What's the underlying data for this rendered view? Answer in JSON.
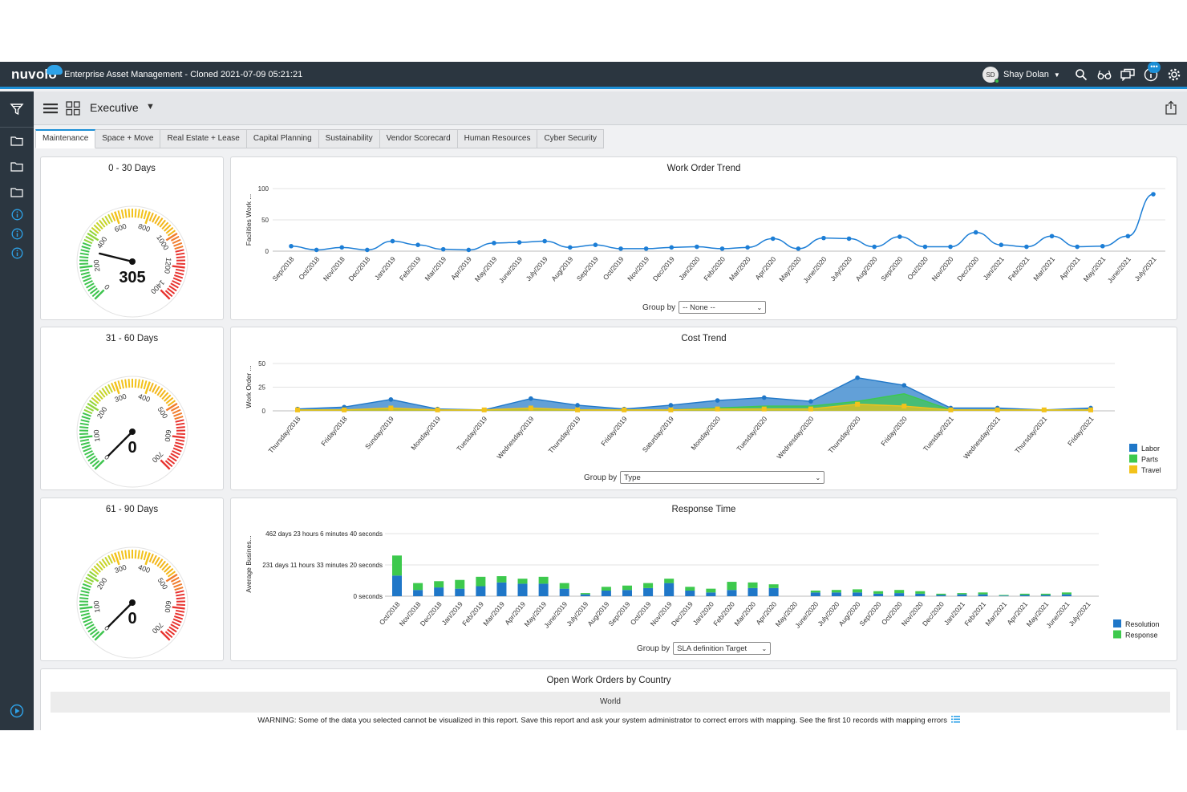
{
  "app": {
    "logo_text": "nuvolo",
    "title": "Enterprise Asset Management - Cloned 2021-07-09 05:21:21",
    "user_initials": "SD",
    "user_name": "Shay Dolan",
    "notification_badge": "•••",
    "accent_color": "#1c8fd6",
    "topbar_color": "#2b3640"
  },
  "header": {
    "dashboard_title": "Executive"
  },
  "tabs": [
    {
      "label": "Maintenance",
      "active": true
    },
    {
      "label": "Space + Move"
    },
    {
      "label": "Real Estate + Lease"
    },
    {
      "label": "Capital Planning"
    },
    {
      "label": "Sustainability"
    },
    {
      "label": "Vendor Scorecard"
    },
    {
      "label": "Human Resources"
    },
    {
      "label": "Cyber Security"
    }
  ],
  "gauges": [
    {
      "title": "0 - 30 Days",
      "value": "305",
      "ticks": [
        "0",
        "200",
        "400",
        "600",
        "800",
        "1000",
        "1200",
        "1400"
      ],
      "max": 1400,
      "needle_value": 305
    },
    {
      "title": "31 - 60 Days",
      "value": "0",
      "ticks": [
        "0",
        "100",
        "200",
        "300",
        "400",
        "500",
        "600",
        "700"
      ],
      "max": 700,
      "needle_value": 0
    },
    {
      "title": "61 - 90 Days",
      "value": "0",
      "ticks": [
        "0",
        "100",
        "200",
        "300",
        "400",
        "500",
        "600",
        "700"
      ],
      "max": 700,
      "needle_value": 0
    }
  ],
  "work_order_trend": {
    "title": "Work Order Trend",
    "group_by_label": "Group by",
    "group_by_value": "-- None --",
    "chart_data": {
      "type": "line",
      "ylabel": "Facilities Work ...",
      "yticks": [
        "0",
        "50",
        "100"
      ],
      "ylim": [
        0,
        100
      ],
      "color": "#1c7ed6",
      "categories": [
        "Sep/2018",
        "Oct/2018",
        "Nov/2018",
        "Dec/2018",
        "Jan/2019",
        "Feb/2019",
        "Mar/2019",
        "Apr/2019",
        "May/2019",
        "June/2019",
        "July/2019",
        "Aug/2019",
        "Sep/2019",
        "Oct/2019",
        "Nov/2019",
        "Dec/2019",
        "Jan/2020",
        "Feb/2020",
        "Mar/2020",
        "Apr/2020",
        "May/2020",
        "June/2020",
        "July/2020",
        "Aug/2020",
        "Sep/2020",
        "Oct/2020",
        "Nov/2020",
        "Dec/2020",
        "Jan/2021",
        "Feb/2021",
        "Mar/2021",
        "Apr/2021",
        "May/2021",
        "June/2021",
        "July/2021"
      ],
      "values": [
        8,
        2,
        6,
        2,
        16,
        10,
        3,
        2,
        13,
        14,
        16,
        6,
        10,
        4,
        4,
        6,
        7,
        4,
        6,
        20,
        4,
        21,
        20,
        7,
        23,
        7,
        7,
        30,
        10,
        7,
        24,
        7,
        8,
        24,
        91
      ]
    }
  },
  "cost_trend": {
    "title": "Cost Trend",
    "group_by_label": "Group by",
    "group_by_value": "Type",
    "chart_data": {
      "type": "area",
      "ylabel": "Work Order ...",
      "yticks": [
        "0",
        "25",
        "50"
      ],
      "ylim": [
        0,
        50
      ],
      "categories": [
        "Thursday/2018",
        "Friday/2018",
        "Sunday/2019",
        "Monday/2019",
        "Tuesday/2019",
        "Wednesday/2019",
        "Thursday/2019",
        "Friday/2019",
        "Saturday/2019",
        "Monday/2020",
        "Tuesday/2020",
        "Wednesday/2020",
        "Thursday/2020",
        "Friday/2020",
        "Tuesday/2021",
        "Wednesday/2021",
        "Thursday/2021",
        "Friday/2021"
      ],
      "series": [
        {
          "name": "Labor",
          "color": "#1f77c8",
          "values": [
            2,
            4,
            12,
            2,
            1,
            13,
            6,
            2,
            6,
            11,
            14,
            10,
            35,
            27,
            3,
            3,
            1,
            3
          ]
        },
        {
          "name": "Parts",
          "color": "#3dc94d",
          "values": [
            1,
            1,
            2,
            1,
            1,
            2,
            1,
            1,
            1,
            3,
            5,
            5,
            10,
            18,
            1,
            1,
            1,
            1
          ]
        },
        {
          "name": "Travel",
          "color": "#f2c21b",
          "values": [
            1,
            1,
            3,
            1,
            1,
            3,
            1,
            1,
            1,
            2,
            2,
            2,
            7,
            5,
            1,
            1,
            1,
            1
          ]
        }
      ]
    }
  },
  "response_time": {
    "title": "Response Time",
    "group_by_label": "Group by",
    "group_by_value": "SLA definition Target",
    "chart_data": {
      "type": "bar",
      "ylabel": "Average Busines...",
      "yticks": [
        "0 seconds",
        "231 days 11 hours 33 minutes 20 seconds",
        "462 days 23 hours 6 minutes 40 seconds"
      ],
      "categories": [
        "Oct/2018",
        "Nov/2018",
        "Dec/2018",
        "Jan/2019",
        "Feb/2019",
        "Mar/2019",
        "Apr/2019",
        "May/2019",
        "June/2019",
        "July/2019",
        "Aug/2019",
        "Sep/2019",
        "Oct/2019",
        "Nov/2019",
        "Dec/2019",
        "Jan/2020",
        "Feb/2020",
        "Mar/2020",
        "Apr/2020",
        "May/2020",
        "June/2020",
        "July/2020",
        "Aug/2020",
        "Sep/2020",
        "Oct/2020",
        "Nov/2020",
        "Dec/2020",
        "Jan/2021",
        "Feb/2021",
        "Mar/2021",
        "Apr/2021",
        "May/2021",
        "June/2021",
        "July/2021"
      ],
      "series": [
        {
          "name": "Resolution",
          "color": "#1f77c8",
          "values": [
            0.66,
            0.2,
            0.28,
            0.24,
            0.32,
            0.44,
            0.4,
            0.4,
            0.24,
            0.06,
            0.18,
            0.2,
            0.26,
            0.42,
            0.18,
            0.12,
            0.2,
            0.26,
            0.26,
            0,
            0.12,
            0.12,
            0.12,
            0.08,
            0.1,
            0.08,
            0.04,
            0.06,
            0.06,
            0.02,
            0.04,
            0.04,
            0.06,
            0
          ]
        },
        {
          "name": "Response",
          "color": "#3dc94d",
          "values": [
            0.64,
            0.22,
            0.2,
            0.28,
            0.3,
            0.2,
            0.16,
            0.22,
            0.18,
            0.04,
            0.12,
            0.14,
            0.16,
            0.14,
            0.12,
            0.12,
            0.26,
            0.18,
            0.12,
            0,
            0.06,
            0.08,
            0.1,
            0.08,
            0.1,
            0.08,
            0.04,
            0.04,
            0.06,
            0.02,
            0.04,
            0.04,
            0.06,
            0
          ]
        }
      ]
    }
  },
  "country": {
    "title": "Open Work Orders by Country",
    "map_label": "World",
    "warning": "WARNING: Some of the data you selected cannot be visualized in this report. Save this report and ask your system administrator to correct errors with mapping. See the first 10 records with mapping errors"
  }
}
